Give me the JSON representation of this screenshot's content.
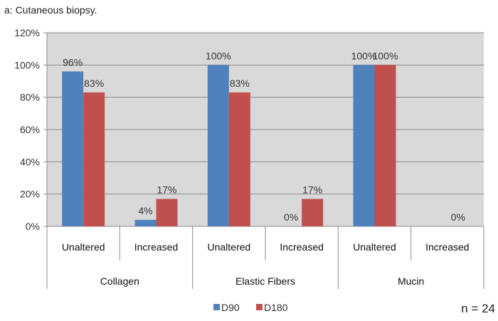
{
  "caption": "a: Cutaneous biopsy.",
  "n_label": "n = 24",
  "chart_data": {
    "type": "bar",
    "title": "",
    "ylim": [
      0,
      120
    ],
    "y_ticks": [
      "0%",
      "20%",
      "40%",
      "60%",
      "80%",
      "100%",
      "120%"
    ],
    "tick_values": [
      0,
      20,
      40,
      60,
      80,
      100,
      120
    ],
    "categories": [
      "Unaltered",
      "Increased",
      "Unaltered",
      "Increased",
      "Unaltered",
      "Increased"
    ],
    "groups": [
      "Collagen",
      "Elastic Fibers",
      "Mucin"
    ],
    "series": [
      {
        "name": "D90",
        "color": "#4f81bd",
        "values": [
          96,
          4,
          100,
          0,
          100,
          null
        ],
        "labels": [
          "96%",
          "4%",
          "100%",
          "0%",
          "100%",
          ""
        ]
      },
      {
        "name": "D180",
        "color": "#c0504d",
        "values": [
          83,
          17,
          83,
          17,
          100,
          0
        ],
        "labels": [
          "83%",
          "17%",
          "83%",
          "17%",
          "100%",
          "0%"
        ]
      }
    ],
    "plot_background": "#d9d9d9",
    "grid": true,
    "legend_position": "bottom-center"
  }
}
